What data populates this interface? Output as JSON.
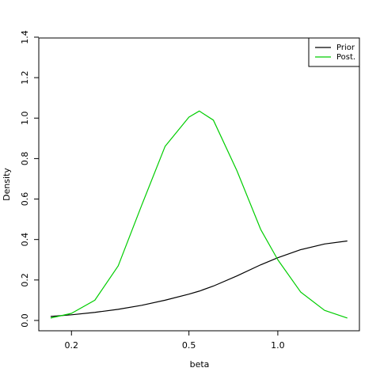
{
  "chart_data": {
    "type": "line",
    "x_label": "beta",
    "y_label": "Density",
    "xscale": "log",
    "x": [
      0.17,
      0.2,
      0.24,
      0.288,
      0.346,
      0.415,
      0.5,
      0.542,
      0.605,
      0.727,
      0.875,
      1.0,
      1.196,
      1.44,
      1.72
    ],
    "series": [
      {
        "name": "Prior",
        "color": "#000000",
        "values": [
          0.02,
          0.028,
          0.04,
          0.055,
          0.075,
          0.1,
          0.13,
          0.145,
          0.17,
          0.22,
          0.275,
          0.31,
          0.35,
          0.378,
          0.393
        ]
      },
      {
        "name": "Post.",
        "color": "#00cd00",
        "values": [
          0.012,
          0.035,
          0.1,
          0.27,
          0.57,
          0.86,
          1.005,
          1.035,
          0.99,
          0.74,
          0.45,
          0.3,
          0.14,
          0.05,
          0.012
        ]
      }
    ],
    "xlim": [
      0.155,
      1.89
    ],
    "ylim": [
      -0.051,
      1.396
    ],
    "xticks": [
      0.2,
      0.5,
      {
        "value": 1,
        "label": "1.0"
      }
    ],
    "yticks": [
      {
        "value": 0,
        "label": "0.0"
      },
      0.2,
      0.4,
      0.6,
      0.8,
      {
        "value": 1,
        "label": "1.0"
      },
      1.2,
      1.4
    ],
    "legend": "top-right"
  }
}
